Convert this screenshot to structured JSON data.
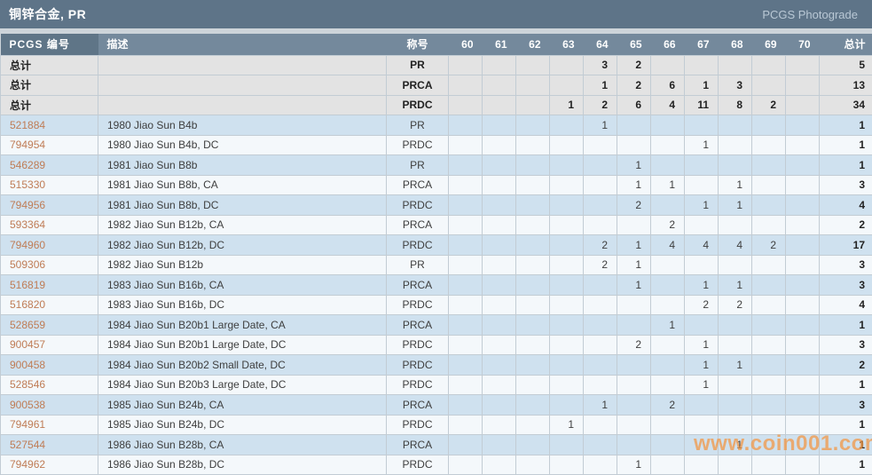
{
  "title_bar": {
    "title": "铜锌合金, PR",
    "link": "PCGS Photograde"
  },
  "watermark": "www.coin001.com",
  "colors": {
    "title_bar_bg": "#5e7488",
    "header_bg": "#74899c",
    "header_first_bg": "#5f7587",
    "row_blue": "#cfe1ef",
    "row_light": "#f4f8fb",
    "summary_bg": "#e3e3e3",
    "pcgs_link": "#bf7c55",
    "watermark_orange": "#f29440"
  },
  "table": {
    "columns": [
      "PCGS 编号",
      "描述",
      "称号",
      "60",
      "61",
      "62",
      "63",
      "64",
      "65",
      "66",
      "67",
      "68",
      "69",
      "70",
      "总计"
    ],
    "grade_labels": [
      "60",
      "61",
      "62",
      "63",
      "64",
      "65",
      "66",
      "67",
      "68",
      "69",
      "70"
    ],
    "summary_rows": [
      {
        "label": "总计",
        "desc": "",
        "designation": "PR",
        "grades": [
          "",
          "",
          "",
          "",
          "3",
          "2",
          "",
          "",
          "",
          "",
          ""
        ],
        "total": "5"
      },
      {
        "label": "总计",
        "desc": "",
        "designation": "PRCA",
        "grades": [
          "",
          "",
          "",
          "",
          "1",
          "2",
          "6",
          "1",
          "3",
          "",
          ""
        ],
        "total": "13"
      },
      {
        "label": "总计",
        "desc": "",
        "designation": "PRDC",
        "grades": [
          "",
          "",
          "",
          "1",
          "2",
          "6",
          "4",
          "11",
          "8",
          "2",
          ""
        ],
        "total": "34"
      }
    ],
    "rows": [
      {
        "pcgs_no": "521884",
        "desc": "1980 Jiao Sun B4b",
        "designation": "PR",
        "grades": [
          "",
          "",
          "",
          "",
          "1",
          "",
          "",
          "",
          "",
          "",
          ""
        ],
        "total": "1"
      },
      {
        "pcgs_no": "794954",
        "desc": "1980 Jiao Sun B4b, DC",
        "designation": "PRDC",
        "grades": [
          "",
          "",
          "",
          "",
          "",
          "",
          "",
          "1",
          "",
          "",
          ""
        ],
        "total": "1"
      },
      {
        "pcgs_no": "546289",
        "desc": "1981 Jiao Sun B8b",
        "designation": "PR",
        "grades": [
          "",
          "",
          "",
          "",
          "",
          "1",
          "",
          "",
          "",
          "",
          ""
        ],
        "total": "1"
      },
      {
        "pcgs_no": "515330",
        "desc": "1981 Jiao Sun B8b, CA",
        "designation": "PRCA",
        "grades": [
          "",
          "",
          "",
          "",
          "",
          "1",
          "1",
          "",
          "1",
          "",
          ""
        ],
        "total": "3"
      },
      {
        "pcgs_no": "794956",
        "desc": "1981 Jiao Sun B8b, DC",
        "designation": "PRDC",
        "grades": [
          "",
          "",
          "",
          "",
          "",
          "2",
          "",
          "1",
          "1",
          "",
          ""
        ],
        "total": "4"
      },
      {
        "pcgs_no": "593364",
        "desc": "1982 Jiao Sun B12b, CA",
        "designation": "PRCA",
        "grades": [
          "",
          "",
          "",
          "",
          "",
          "",
          "2",
          "",
          "",
          "",
          ""
        ],
        "total": "2"
      },
      {
        "pcgs_no": "794960",
        "desc": "1982 Jiao Sun B12b, DC",
        "designation": "PRDC",
        "grades": [
          "",
          "",
          "",
          "",
          "2",
          "1",
          "4",
          "4",
          "4",
          "2",
          ""
        ],
        "total": "17"
      },
      {
        "pcgs_no": "509306",
        "desc": "1982 Jiao Sun B12b",
        "designation": "PR",
        "grades": [
          "",
          "",
          "",
          "",
          "2",
          "1",
          "",
          "",
          "",
          "",
          ""
        ],
        "total": "3"
      },
      {
        "pcgs_no": "516819",
        "desc": "1983 Jiao Sun B16b, CA",
        "designation": "PRCA",
        "grades": [
          "",
          "",
          "",
          "",
          "",
          "1",
          "",
          "1",
          "1",
          "",
          ""
        ],
        "total": "3"
      },
      {
        "pcgs_no": "516820",
        "desc": "1983 Jiao Sun B16b, DC",
        "designation": "PRDC",
        "grades": [
          "",
          "",
          "",
          "",
          "",
          "",
          "",
          "2",
          "2",
          "",
          ""
        ],
        "total": "4"
      },
      {
        "pcgs_no": "528659",
        "desc": "1984 Jiao Sun B20b1 Large Date, CA",
        "designation": "PRCA",
        "grades": [
          "",
          "",
          "",
          "",
          "",
          "",
          "1",
          "",
          "",
          "",
          ""
        ],
        "total": "1"
      },
      {
        "pcgs_no": "900457",
        "desc": "1984 Jiao Sun B20b1 Large Date, DC",
        "designation": "PRDC",
        "grades": [
          "",
          "",
          "",
          "",
          "",
          "2",
          "",
          "1",
          "",
          "",
          ""
        ],
        "total": "3"
      },
      {
        "pcgs_no": "900458",
        "desc": "1984 Jiao Sun B20b2 Small Date, DC",
        "designation": "PRDC",
        "grades": [
          "",
          "",
          "",
          "",
          "",
          "",
          "",
          "1",
          "1",
          "",
          ""
        ],
        "total": "2"
      },
      {
        "pcgs_no": "528546",
        "desc": "1984 Jiao Sun B20b3 Large Date, DC",
        "designation": "PRDC",
        "grades": [
          "",
          "",
          "",
          "",
          "",
          "",
          "",
          "1",
          "",
          "",
          ""
        ],
        "total": "1"
      },
      {
        "pcgs_no": "900538",
        "desc": "1985 Jiao Sun B24b, CA",
        "designation": "PRCA",
        "grades": [
          "",
          "",
          "",
          "",
          "1",
          "",
          "2",
          "",
          "",
          "",
          ""
        ],
        "total": "3"
      },
      {
        "pcgs_no": "794961",
        "desc": "1985 Jiao Sun B24b, DC",
        "designation": "PRDC",
        "grades": [
          "",
          "",
          "",
          "1",
          "",
          "",
          "",
          "",
          "",
          "",
          ""
        ],
        "total": "1"
      },
      {
        "pcgs_no": "527544",
        "desc": "1986 Jiao Sun B28b, CA",
        "designation": "PRCA",
        "grades": [
          "",
          "",
          "",
          "",
          "",
          "",
          "",
          "",
          "1",
          "",
          ""
        ],
        "total": "1"
      },
      {
        "pcgs_no": "794962",
        "desc": "1986 Jiao Sun B28b, DC",
        "designation": "PRDC",
        "grades": [
          "",
          "",
          "",
          "",
          "",
          "1",
          "",
          "",
          "",
          "",
          ""
        ],
        "total": "1"
      }
    ]
  }
}
